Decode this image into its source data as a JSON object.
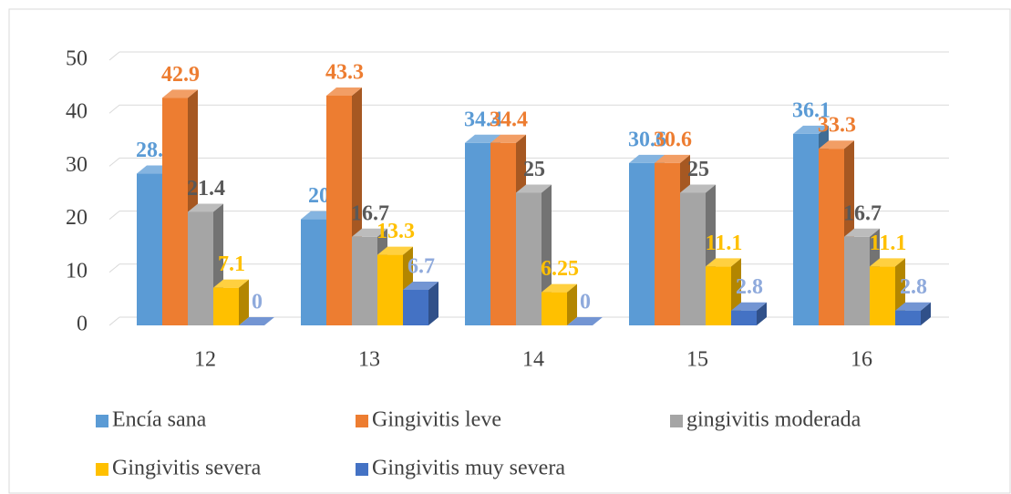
{
  "chart_data": {
    "type": "bar3d",
    "categories": [
      "12",
      "13",
      "14",
      "15",
      "16"
    ],
    "series": [
      {
        "name": "Encía sana",
        "color": "#5b9bd5",
        "label_color": "#5b9bd5",
        "values": [
          28.6,
          20,
          34.4,
          30.6,
          36.1
        ]
      },
      {
        "name": "Gingivitis leve",
        "color": "#ed7d31",
        "label_color": "#ed7d31",
        "values": [
          42.9,
          43.3,
          34.4,
          30.6,
          33.3
        ]
      },
      {
        "name": "gingivitis moderada",
        "color": "#a5a5a5",
        "label_color": "#595959",
        "values": [
          21.4,
          16.7,
          25,
          25,
          16.7
        ]
      },
      {
        "name": "Gingivitis severa",
        "color": "#ffc000",
        "label_color": "#ffc000",
        "values": [
          7.1,
          13.3,
          6.25,
          11.1,
          11.1
        ]
      },
      {
        "name": "Gingivitis muy severa",
        "color": "#4472c4",
        "label_color": "#8faadc",
        "values": [
          0,
          6.7,
          0,
          2.8,
          2.8
        ]
      }
    ],
    "ylim": [
      0,
      50
    ],
    "yticks": [
      0,
      10,
      20,
      30,
      40,
      50
    ],
    "grid": true,
    "legend": "bottom"
  }
}
